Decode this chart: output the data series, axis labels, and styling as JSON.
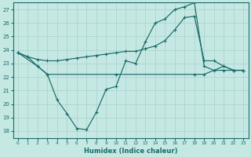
{
  "xlabel": "Humidex (Indice chaleur)",
  "bg_color": "#c5e8e3",
  "line_color": "#1a6b6b",
  "grid_color": "#a8d0cc",
  "xlim": [
    -0.5,
    23.5
  ],
  "ylim": [
    17.5,
    27.5
  ],
  "yticks": [
    18,
    19,
    20,
    21,
    22,
    23,
    24,
    25,
    26,
    27
  ],
  "xticks": [
    0,
    1,
    2,
    3,
    4,
    5,
    6,
    7,
    8,
    9,
    10,
    11,
    12,
    13,
    14,
    15,
    16,
    17,
    18,
    19,
    20,
    21,
    22,
    23
  ],
  "curve1_x": [
    0,
    1,
    2,
    3,
    4,
    5,
    6,
    7,
    8,
    9,
    10,
    11,
    12,
    13,
    14,
    15,
    16,
    17,
    18,
    19,
    20,
    21,
    22,
    23
  ],
  "curve1_y": [
    23.8,
    23.5,
    22.8,
    22.2,
    20.3,
    19.3,
    18.2,
    18.1,
    19.4,
    21.1,
    21.3,
    23.2,
    23.0,
    24.6,
    26.0,
    26.3,
    27.0,
    27.2,
    27.5,
    22.8,
    22.5,
    22.5,
    22.5,
    22.5
  ],
  "curve2_x": [
    0,
    1,
    2,
    3,
    4,
    5,
    6,
    7,
    8,
    9,
    10,
    11,
    12,
    13,
    14,
    15,
    16,
    17,
    18,
    19,
    20,
    21,
    22,
    23
  ],
  "curve2_y": [
    23.8,
    23.5,
    23.3,
    23.2,
    23.2,
    23.3,
    23.4,
    23.5,
    23.6,
    23.7,
    23.8,
    23.9,
    23.9,
    24.1,
    24.3,
    24.7,
    25.5,
    26.4,
    26.5,
    23.2,
    23.2,
    22.8,
    22.5,
    22.5
  ],
  "curve3_x": [
    0,
    2,
    3,
    10,
    18,
    19,
    21,
    22,
    23
  ],
  "curve3_y": [
    23.8,
    22.8,
    22.2,
    22.2,
    22.2,
    22.2,
    22.8,
    22.5,
    22.5
  ]
}
